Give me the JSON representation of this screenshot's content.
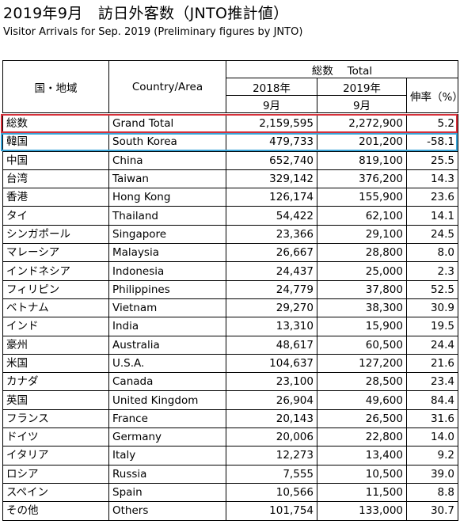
{
  "title": "2019年9月　訪日外客数（JNTO推計値）",
  "subtitle": "Visitor Arrivals for Sep. 2019 (Preliminary figures by JNTO)",
  "colors": {
    "grand_total_outline": "#d6303a",
    "korea_outline": "#3aa5d8"
  },
  "header": {
    "region_jp": "国・地域",
    "country_area": "Country/Area",
    "total": "総数　 Total",
    "col_2018": "2018年",
    "col_2018_month": "9月",
    "col_2019": "2019年",
    "col_2019_month": "9月",
    "growth_rate": "伸率（%）"
  },
  "rows": [
    {
      "jp": "総数",
      "en": "Grand Total",
      "y2018": "2,159,595",
      "y2019": "2,272,900",
      "rate": "5.2"
    },
    {
      "jp": "韓国",
      "en": "South Korea",
      "y2018": "479,733",
      "y2019": "201,200",
      "rate": "-58.1"
    },
    {
      "jp": "中国",
      "en": "China",
      "y2018": "652,740",
      "y2019": "819,100",
      "rate": "25.5"
    },
    {
      "jp": "台湾",
      "en": "Taiwan",
      "y2018": "329,142",
      "y2019": "376,200",
      "rate": "14.3"
    },
    {
      "jp": "香港",
      "en": "Hong Kong",
      "y2018": "126,174",
      "y2019": "155,900",
      "rate": "23.6"
    },
    {
      "jp": "タイ",
      "en": "Thailand",
      "y2018": "54,422",
      "y2019": "62,100",
      "rate": "14.1"
    },
    {
      "jp": "シンガポール",
      "en": "Singapore",
      "y2018": "23,366",
      "y2019": "29,100",
      "rate": "24.5"
    },
    {
      "jp": "マレーシア",
      "en": "Malaysia",
      "y2018": "26,667",
      "y2019": "28,800",
      "rate": "8.0"
    },
    {
      "jp": "インドネシア",
      "en": "Indonesia",
      "y2018": "24,437",
      "y2019": "25,000",
      "rate": "2.3"
    },
    {
      "jp": "フィリピン",
      "en": "Philippines",
      "y2018": "24,779",
      "y2019": "37,800",
      "rate": "52.5"
    },
    {
      "jp": "ベトナム",
      "en": "Vietnam",
      "y2018": "29,270",
      "y2019": "38,300",
      "rate": "30.9"
    },
    {
      "jp": "インド",
      "en": "India",
      "y2018": "13,310",
      "y2019": "15,900",
      "rate": "19.5"
    },
    {
      "jp": "豪州",
      "en": "Australia",
      "y2018": "48,617",
      "y2019": "60,500",
      "rate": "24.4"
    },
    {
      "jp": "米国",
      "en": "U.S.A.",
      "y2018": "104,637",
      "y2019": "127,200",
      "rate": "21.6"
    },
    {
      "jp": "カナダ",
      "en": "Canada",
      "y2018": "23,100",
      "y2019": "28,500",
      "rate": "23.4"
    },
    {
      "jp": "英国",
      "en": "United Kingdom",
      "y2018": "26,904",
      "y2019": "49,600",
      "rate": "84.4"
    },
    {
      "jp": "フランス",
      "en": "France",
      "y2018": "20,143",
      "y2019": "26,500",
      "rate": "31.6"
    },
    {
      "jp": "ドイツ",
      "en": "Germany",
      "y2018": "20,006",
      "y2019": "22,800",
      "rate": "14.0"
    },
    {
      "jp": "イタリア",
      "en": "Italy",
      "y2018": "12,273",
      "y2019": "13,400",
      "rate": "9.2"
    },
    {
      "jp": "ロシア",
      "en": "Russia",
      "y2018": "7,555",
      "y2019": "10,500",
      "rate": "39.0"
    },
    {
      "jp": "スペイン",
      "en": "Spain",
      "y2018": "10,566",
      "y2019": "11,500",
      "rate": "8.8"
    },
    {
      "jp": "その他",
      "en": "Others",
      "y2018": "101,754",
      "y2019": "133,000",
      "rate": "30.7"
    }
  ]
}
